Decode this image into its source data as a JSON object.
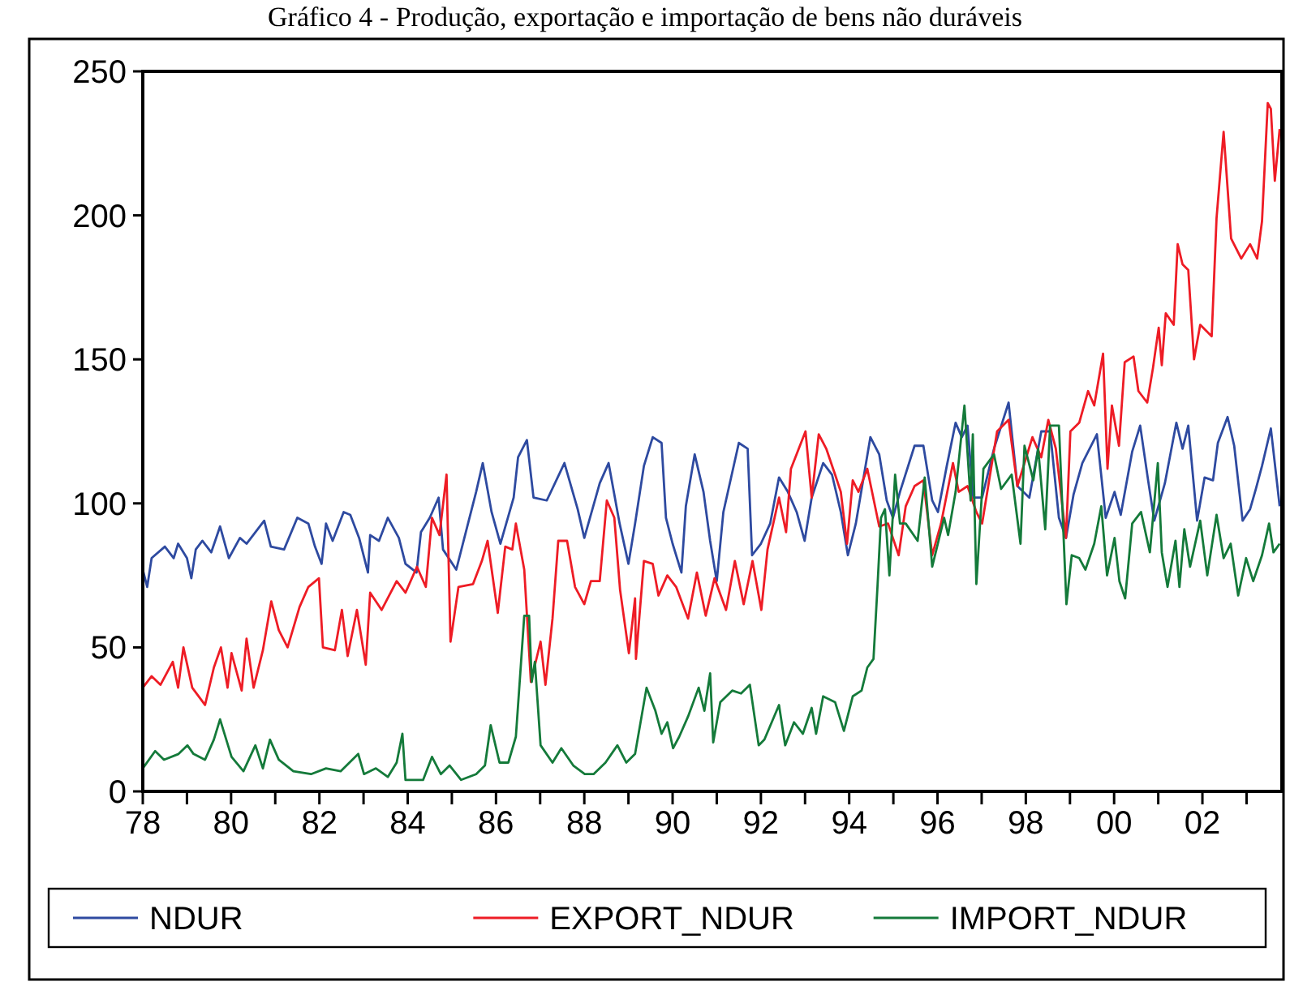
{
  "chart_data": {
    "type": "line",
    "title": "Gráfico 4 - Produção, exportação e importação de bens não duráveis",
    "xlim": [
      1978,
      2003.8
    ],
    "xticks": [
      {
        "value": 1978,
        "label": "78"
      },
      {
        "value": 1979,
        "label": null
      },
      {
        "value": 1980,
        "label": "80"
      },
      {
        "value": 1981,
        "label": null
      },
      {
        "value": 1982,
        "label": "82"
      },
      {
        "value": 1983,
        "label": null
      },
      {
        "value": 1984,
        "label": "84"
      },
      {
        "value": 1985,
        "label": null
      },
      {
        "value": 1986,
        "label": "86"
      },
      {
        "value": 1987,
        "label": null
      },
      {
        "value": 1988,
        "label": "88"
      },
      {
        "value": 1989,
        "label": null
      },
      {
        "value": 1990,
        "label": "90"
      },
      {
        "value": 1991,
        "label": null
      },
      {
        "value": 1992,
        "label": "92"
      },
      {
        "value": 1993,
        "label": null
      },
      {
        "value": 1994,
        "label": "94"
      },
      {
        "value": 1995,
        "label": null
      },
      {
        "value": 1996,
        "label": "96"
      },
      {
        "value": 1997,
        "label": null
      },
      {
        "value": 1998,
        "label": "98"
      },
      {
        "value": 1999,
        "label": null
      },
      {
        "value": 2000,
        "label": "00"
      },
      {
        "value": 2001,
        "label": null
      },
      {
        "value": 2002,
        "label": "02"
      },
      {
        "value": 2003,
        "label": null
      }
    ],
    "ylim": [
      0,
      250
    ],
    "yticks": [
      0,
      50,
      100,
      150,
      200,
      250
    ],
    "legend": "bottom",
    "marker": "none",
    "line_style": "solid",
    "series": [
      {
        "name": "NDUR",
        "color": "#2e4aa0",
        "x": [
          1978.0,
          1978.1,
          1978.2,
          1978.5,
          1978.7,
          1978.8,
          1979.0,
          1979.1,
          1979.2,
          1979.35,
          1979.55,
          1979.75,
          1979.95,
          1980.2,
          1980.35,
          1980.55,
          1980.75,
          1980.9,
          1981.2,
          1981.5,
          1981.75,
          1981.9,
          1982.05,
          1982.15,
          1982.3,
          1982.55,
          1982.7,
          1982.9,
          1983.1,
          1983.15,
          1983.35,
          1983.55,
          1983.8,
          1983.95,
          1984.2,
          1984.3,
          1984.5,
          1984.7,
          1984.8,
          1985.1,
          1985.35,
          1985.55,
          1985.7,
          1985.9,
          1986.1,
          1986.4,
          1986.5,
          1986.7,
          1986.85,
          1987.15,
          1987.55,
          1987.85,
          1988.0,
          1988.35,
          1988.55,
          1988.8,
          1989.0,
          1989.15,
          1989.35,
          1989.55,
          1989.75,
          1989.85,
          1990.0,
          1990.2,
          1990.3,
          1990.5,
          1990.7,
          1990.85,
          1991.0,
          1991.15,
          1991.5,
          1991.7,
          1991.8,
          1992.0,
          1992.21,
          1992.41,
          1992.61,
          1992.81,
          1992.99,
          1993.15,
          1993.41,
          1993.61,
          1993.81,
          1993.97,
          1994.15,
          1994.48,
          1994.68,
          1994.85,
          1994.99,
          1995.15,
          1995.48,
          1995.68,
          1995.88,
          1996.01,
          1996.21,
          1996.41,
          1996.55,
          1996.68,
          1996.81,
          1997.01,
          1997.28,
          1997.61,
          1997.81,
          1998.08,
          1998.35,
          1998.55,
          1998.75,
          1998.91,
          1999.08,
          1999.28,
          1999.61,
          1999.81,
          2000.01,
          2000.15,
          2000.41,
          2000.59,
          2000.77,
          2000.91,
          2001.15,
          2001.41,
          2001.55,
          2001.68,
          2001.88,
          2002.05,
          2002.24,
          2002.35,
          2002.57,
          2002.72,
          2002.91,
          2003.08,
          2003.21,
          2003.35,
          2003.55,
          2003.75
        ],
        "values": [
          77,
          71,
          81,
          85,
          81,
          86,
          81,
          74,
          84,
          87,
          83,
          92,
          81,
          88,
          86,
          90,
          94,
          85,
          84,
          95,
          93,
          85,
          79,
          93,
          87,
          97,
          96,
          88,
          76,
          89,
          87,
          95,
          88,
          79,
          76,
          90,
          95,
          102,
          84,
          77,
          92,
          104,
          114,
          97,
          86,
          102,
          116,
          122,
          102,
          101,
          114,
          98,
          88,
          107,
          114,
          93,
          79,
          93,
          113,
          123,
          121,
          95,
          86,
          76,
          99,
          117,
          104,
          87,
          73,
          97,
          121,
          119,
          82,
          86,
          93,
          109,
          104,
          97,
          87,
          102,
          114,
          110,
          97,
          82,
          93,
          123,
          117,
          101,
          95,
          104,
          120,
          120,
          101,
          97,
          113,
          128,
          123,
          127,
          102,
          102,
          119,
          135,
          106,
          102,
          125,
          125,
          95,
          88,
          103,
          114,
          124,
          95,
          104,
          96,
          118,
          127,
          108,
          94,
          107,
          128,
          119,
          127,
          94,
          109,
          108,
          121,
          130,
          120,
          94,
          98,
          105,
          113,
          126,
          99
        ]
      },
      {
        "name": "EXPORT_NDUR",
        "color": "#ee1c25",
        "x": [
          1978.0,
          1978.2,
          1978.4,
          1978.68,
          1978.8,
          1978.92,
          1979.12,
          1979.41,
          1979.61,
          1979.77,
          1979.92,
          1980.01,
          1980.24,
          1980.35,
          1980.51,
          1980.72,
          1980.91,
          1981.08,
          1981.28,
          1981.55,
          1981.75,
          1981.99,
          1982.08,
          1982.35,
          1982.51,
          1982.64,
          1982.85,
          1983.05,
          1983.15,
          1983.41,
          1983.75,
          1983.95,
          1984.21,
          1984.41,
          1984.55,
          1984.72,
          1984.88,
          1984.97,
          1985.15,
          1985.48,
          1985.68,
          1985.81,
          1986.04,
          1986.21,
          1986.37,
          1986.45,
          1986.64,
          1986.79,
          1987.01,
          1987.12,
          1987.28,
          1987.41,
          1987.61,
          1987.79,
          1988.0,
          1988.15,
          1988.35,
          1988.51,
          1988.68,
          1988.81,
          1989.01,
          1989.15,
          1989.17,
          1989.35,
          1989.55,
          1989.68,
          1989.88,
          1990.08,
          1990.35,
          1990.55,
          1990.75,
          1990.95,
          1991.21,
          1991.41,
          1991.61,
          1991.81,
          1992.01,
          1992.15,
          1992.41,
          1992.57,
          1992.68,
          1993.01,
          1993.15,
          1993.31,
          1993.48,
          1993.68,
          1993.81,
          1993.95,
          1994.08,
          1994.21,
          1994.41,
          1994.68,
          1994.88,
          1995.12,
          1995.28,
          1995.48,
          1995.68,
          1995.88,
          1996.08,
          1996.35,
          1996.48,
          1996.68,
          1996.88,
          1997.01,
          1997.35,
          1997.61,
          1997.81,
          1998.15,
          1998.35,
          1998.51,
          1998.68,
          1998.91,
          1999.01,
          1999.21,
          1999.41,
          1999.55,
          1999.75,
          1999.85,
          1999.95,
          2000.11,
          2000.24,
          2000.44,
          2000.55,
          2000.75,
          2000.88,
          2001.01,
          2001.08,
          2001.17,
          2001.35,
          2001.44,
          2001.55,
          2001.68,
          2001.81,
          2001.95,
          2002.21,
          2002.32,
          2002.48,
          2002.65,
          2002.88,
          2003.08,
          2003.24,
          2003.35,
          2003.48,
          2003.55,
          2003.64,
          2003.75
        ],
        "values": [
          36,
          40,
          37,
          45,
          36,
          50,
          36,
          30,
          43,
          50,
          36,
          48,
          35,
          53,
          36,
          49,
          66,
          56,
          50,
          64,
          71,
          74,
          50,
          49,
          63,
          47,
          63,
          44,
          69,
          63,
          73,
          69,
          78,
          71,
          95,
          89,
          110,
          52,
          71,
          72,
          80,
          87,
          62,
          85,
          84,
          93,
          77,
          38,
          52,
          37,
          60,
          87,
          87,
          71,
          65,
          73,
          73,
          101,
          95,
          70,
          48,
          67,
          46,
          80,
          79,
          68,
          75,
          71,
          60,
          76,
          61,
          74,
          63,
          80,
          65,
          80,
          63,
          84,
          102,
          90,
          112,
          125,
          102,
          124,
          119,
          110,
          104,
          86,
          108,
          104,
          112,
          92,
          93,
          82,
          99,
          106,
          108,
          82,
          93,
          114,
          104,
          106,
          97,
          93,
          125,
          129,
          106,
          123,
          116,
          129,
          119,
          88,
          125,
          128,
          139,
          134,
          152,
          112,
          134,
          120,
          149,
          151,
          139,
          135,
          147,
          161,
          148,
          166,
          162,
          190,
          183,
          181,
          150,
          162,
          158,
          199,
          229,
          192,
          185,
          190,
          185,
          198,
          239,
          237,
          212,
          230
        ]
      },
      {
        "name": "IMPORT_NDUR",
        "color": "#147a3a",
        "x": [
          1978.0,
          1978.28,
          1978.48,
          1978.81,
          1979.01,
          1979.15,
          1979.41,
          1979.61,
          1979.75,
          1980.01,
          1980.28,
          1980.55,
          1980.72,
          1980.88,
          1981.08,
          1981.41,
          1981.81,
          1982.15,
          1982.48,
          1982.88,
          1983.01,
          1983.28,
          1983.55,
          1983.75,
          1983.88,
          1983.95,
          1984.35,
          1984.55,
          1984.75,
          1984.95,
          1985.21,
          1985.55,
          1985.75,
          1985.88,
          1986.08,
          1986.28,
          1986.45,
          1986.55,
          1986.64,
          1986.75,
          1986.81,
          1986.88,
          1987.01,
          1987.28,
          1987.48,
          1987.75,
          1988.01,
          1988.21,
          1988.48,
          1988.75,
          1988.95,
          1989.15,
          1989.41,
          1989.61,
          1989.75,
          1989.88,
          1990.01,
          1990.15,
          1990.35,
          1990.59,
          1990.72,
          1990.85,
          1990.92,
          1991.08,
          1991.35,
          1991.55,
          1991.75,
          1991.95,
          1992.08,
          1992.41,
          1992.55,
          1992.75,
          1992.95,
          1993.15,
          1993.25,
          1993.41,
          1993.68,
          1993.88,
          1994.08,
          1994.28,
          1994.41,
          1994.55,
          1994.64,
          1994.72,
          1994.81,
          1994.91,
          1995.04,
          1995.15,
          1995.28,
          1995.55,
          1995.71,
          1995.88,
          1996.15,
          1996.24,
          1996.41,
          1996.61,
          1996.75,
          1996.8,
          1996.88,
          1997.04,
          1997.28,
          1997.44,
          1997.68,
          1997.88,
          1997.97,
          1998.17,
          1998.28,
          1998.44,
          1998.55,
          1998.75,
          1998.92,
          1999.04,
          1999.21,
          1999.35,
          1999.55,
          1999.71,
          1999.84,
          2000.01,
          2000.12,
          2000.25,
          2000.41,
          2000.61,
          2000.81,
          2000.99,
          2001.08,
          2001.21,
          2001.39,
          2001.48,
          2001.59,
          2001.72,
          2001.95,
          2002.11,
          2002.32,
          2002.48,
          2002.64,
          2002.81,
          2002.99,
          2003.15,
          2003.35,
          2003.51,
          2003.61,
          2003.75
        ],
        "values": [
          8,
          14,
          11,
          13,
          16,
          13,
          11,
          18,
          25,
          12,
          7,
          16,
          8,
          18,
          11,
          7,
          6,
          8,
          7,
          13,
          6,
          8,
          5,
          10,
          20,
          4,
          4,
          12,
          6,
          9,
          4,
          6,
          9,
          23,
          10,
          10,
          19,
          41,
          61,
          61,
          38,
          45,
          16,
          10,
          15,
          9,
          6,
          6,
          10,
          16,
          10,
          13,
          36,
          28,
          20,
          24,
          15,
          19,
          26,
          36,
          28,
          41,
          17,
          31,
          35,
          34,
          37,
          16,
          18,
          30,
          16,
          24,
          20,
          29,
          20,
          33,
          31,
          21,
          33,
          35,
          43,
          46,
          71,
          95,
          98,
          75,
          110,
          93,
          93,
          87,
          109,
          78,
          95,
          89,
          104,
          134,
          101,
          124,
          72,
          112,
          117,
          105,
          110,
          86,
          120,
          108,
          119,
          91,
          127,
          127,
          65,
          82,
          81,
          77,
          86,
          99,
          75,
          88,
          73,
          67,
          93,
          97,
          83,
          114,
          83,
          71,
          87,
          71,
          91,
          78,
          94,
          75,
          96,
          81,
          86,
          68,
          81,
          73,
          82,
          93,
          83,
          86
        ]
      }
    ]
  }
}
